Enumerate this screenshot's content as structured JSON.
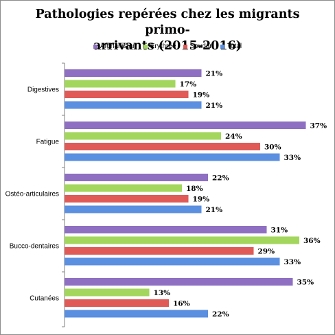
{
  "chart_data": {
    "type": "bar",
    "orientation": "horizontal",
    "title": "Pathologies repérées chez les migrants primo-arrivants (2015-2016)",
    "title_lines": [
      "Pathologies repérées chez les migrants primo-",
      "arrivants (2015-2016)"
    ],
    "categories": [
      "Digestives",
      "Fatigue",
      "Ostéo-articulaires",
      "Bucco-dentaires",
      "Cutanées"
    ],
    "series": [
      {
        "name": "Afghanistan",
        "color": "#8e6fc1",
        "values": [
          21,
          37,
          22,
          31,
          35
        ],
        "labels": [
          "21%",
          "37%",
          "22%",
          "31%",
          "35%"
        ]
      },
      {
        "name": "Erythrée",
        "color": "#a3d65c",
        "values": [
          17,
          24,
          18,
          36,
          13
        ],
        "labels": [
          "17%",
          "24%",
          "18%",
          "36%",
          "13%"
        ]
      },
      {
        "name": "Soudan",
        "color": "#e05a57",
        "values": [
          19,
          30,
          19,
          29,
          16
        ],
        "labels": [
          "19%",
          "30%",
          "19%",
          "29%",
          "16%"
        ]
      },
      {
        "name": "Total",
        "color": "#5b8fe0",
        "values": [
          21,
          33,
          21,
          33,
          22
        ],
        "labels": [
          "21%",
          "33%",
          "21%",
          "33%",
          "22%"
        ]
      }
    ],
    "xlim": [
      0,
      40
    ],
    "legend": "top",
    "grid": false
  }
}
